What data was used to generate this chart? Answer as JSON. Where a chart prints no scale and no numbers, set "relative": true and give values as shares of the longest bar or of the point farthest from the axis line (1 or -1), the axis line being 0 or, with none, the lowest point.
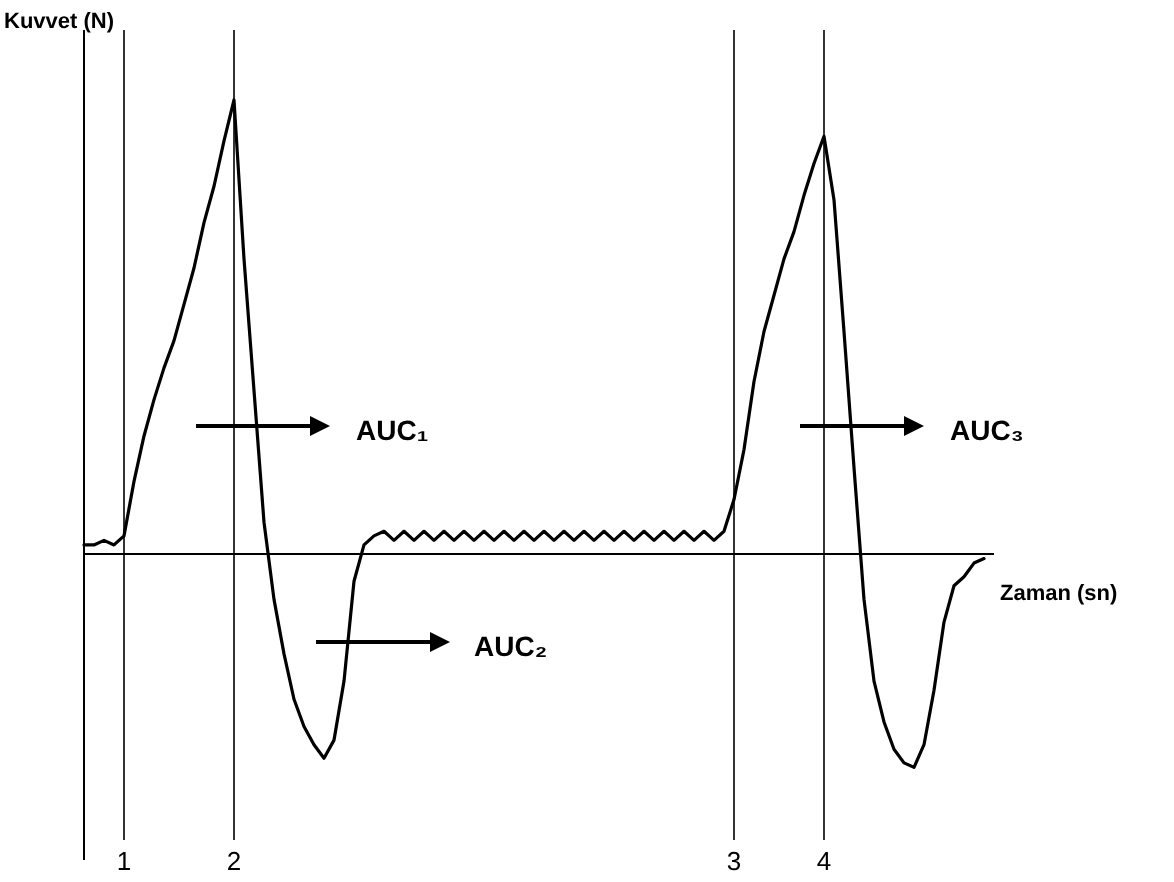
{
  "chart_data": {
    "type": "line",
    "relative": true,
    "xlabel": "Zaman (sn)",
    "ylabel": "Kuvvet (N)",
    "color": "#000000",
    "categories": [
      null,
      null,
      null,
      null,
      "1",
      null,
      null,
      null,
      null,
      null,
      null,
      null,
      null,
      null,
      null,
      "2",
      null,
      null,
      null,
      null,
      null,
      null,
      null,
      null,
      null,
      null,
      null,
      null,
      null,
      null,
      null,
      null,
      null,
      null,
      null,
      null,
      null,
      null,
      null,
      null,
      null,
      null,
      null,
      null,
      null,
      null,
      null,
      null,
      null,
      null,
      null,
      null,
      null,
      null,
      null,
      null,
      null,
      null,
      null,
      null,
      null,
      null,
      null,
      null,
      null,
      "3",
      null,
      null,
      null,
      null,
      null,
      null,
      null,
      null,
      "4",
      null,
      null,
      null,
      null,
      null,
      null,
      null,
      null,
      null,
      null,
      null,
      null,
      null,
      null,
      null,
      null
    ],
    "values": [
      0.02,
      0.02,
      0.03,
      0.02,
      0.04,
      0.16,
      0.26,
      0.34,
      0.41,
      0.47,
      0.55,
      0.63,
      0.73,
      0.81,
      0.91,
      1,
      0.65,
      0.36,
      0.07,
      -0.1,
      -0.22,
      -0.32,
      -0.38,
      -0.42,
      -0.45,
      -0.41,
      -0.28,
      -0.06,
      0.02,
      0.04,
      0.05,
      0.03,
      0.05,
      0.03,
      0.05,
      0.03,
      0.05,
      0.03,
      0.05,
      0.03,
      0.05,
      0.03,
      0.05,
      0.03,
      0.05,
      0.03,
      0.05,
      0.03,
      0.05,
      0.03,
      0.05,
      0.03,
      0.05,
      0.03,
      0.05,
      0.03,
      0.05,
      0.03,
      0.05,
      0.03,
      0.05,
      0.03,
      0.05,
      0.03,
      0.05,
      0.12,
      0.23,
      0.38,
      0.49,
      0.57,
      0.65,
      0.71,
      0.79,
      0.86,
      0.92,
      0.78,
      0.49,
      0.19,
      -0.1,
      -0.28,
      -0.37,
      -0.43,
      -0.46,
      -0.47,
      -0.42,
      -0.3,
      -0.15,
      -0.07,
      -0.05,
      -0.02,
      -0.01
    ],
    "ref_lines": [
      {
        "axis": "x",
        "value": "1",
        "color": "#000000"
      },
      {
        "axis": "x",
        "value": "2",
        "color": "#000000"
      },
      {
        "axis": "x",
        "value": "3",
        "color": "#000000"
      },
      {
        "axis": "x",
        "value": "4",
        "color": "#000000"
      }
    ],
    "annotations": [
      "AUC₁",
      "AUC₂",
      "AUC₃"
    ]
  }
}
